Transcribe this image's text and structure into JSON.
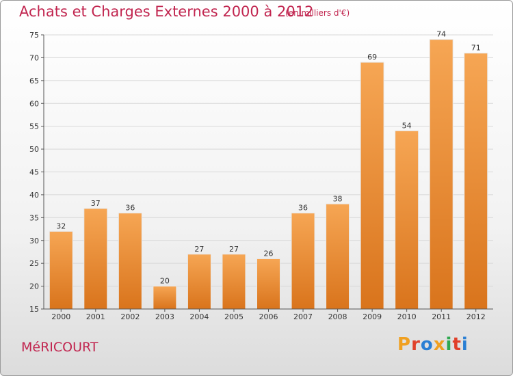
{
  "title": "Achats et Charges Externes 2000 à 2012",
  "subtitle": "(en milliers d'€)",
  "location": "MéRICOURT",
  "brand": {
    "text": "Proxiti",
    "colors": [
      "#f0a020",
      "#e0402a",
      "#2a7fd4",
      "#f0a020",
      "#2fa84f",
      "#e0402a",
      "#2a7fd4"
    ]
  },
  "colors": {
    "accent": "#c1254f",
    "bar_top": "#f6a654",
    "bar_bottom": "#d9741c",
    "grid": "#d8d8d8",
    "axis_text": "#333333"
  },
  "chart_data": {
    "type": "bar",
    "categories": [
      "2000",
      "2001",
      "2002",
      "2003",
      "2004",
      "2005",
      "2006",
      "2007",
      "2008",
      "2009",
      "2010",
      "2011",
      "2012"
    ],
    "values": [
      32,
      37,
      36,
      20,
      27,
      27,
      26,
      36,
      38,
      69,
      54,
      74,
      71
    ],
    "title": "Achats et Charges Externes 2000 à 2012",
    "ylim": [
      15,
      75
    ],
    "yticks": [
      15,
      20,
      25,
      30,
      35,
      40,
      45,
      50,
      55,
      60,
      65,
      70,
      75
    ],
    "grid": true
  }
}
